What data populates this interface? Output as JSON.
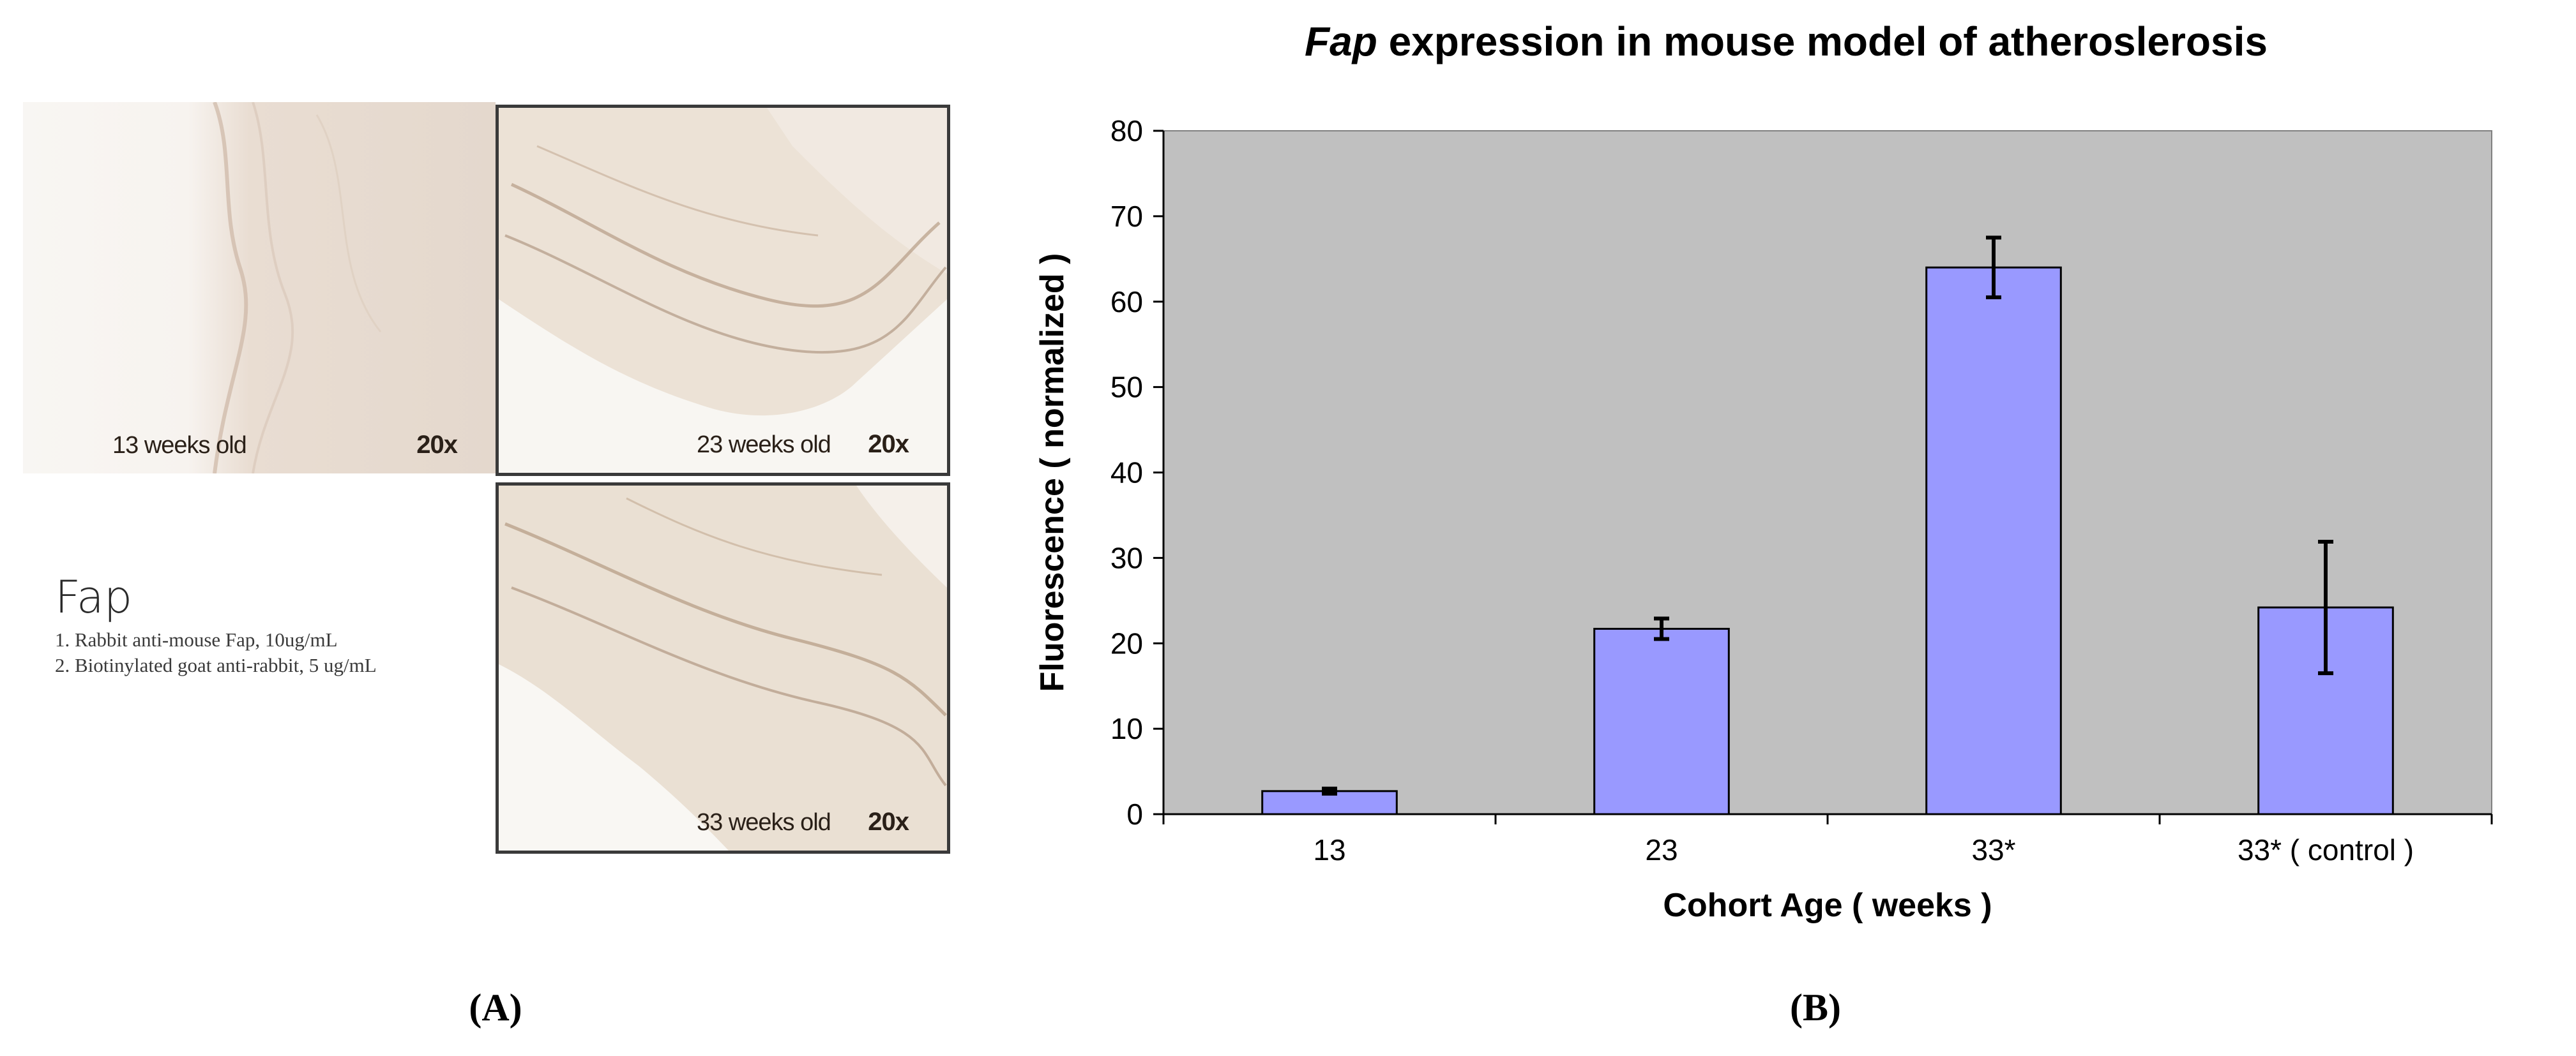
{
  "panel_a": {
    "label": "(A)",
    "micrographs": [
      {
        "age": "13 weeks old",
        "mag": "20x"
      },
      {
        "age": "23 weeks old",
        "mag": "20x"
      },
      {
        "age": "33 weeks old",
        "mag": "20x"
      }
    ],
    "legend": {
      "title": "Fap",
      "line1": "1. Rabbit anti-mouse Fap, 10ug/mL",
      "line2": "2. Biotinylated goat anti-rabbit, 5 ug/mL"
    }
  },
  "panel_b": {
    "label": "(B)"
  },
  "chart_data": {
    "type": "bar",
    "title_italic": "Fap",
    "title_rest": " expression in mouse model of atheroslerosis",
    "xlabel": "Cohort Age ( weeks )",
    "ylabel": "Fluorescence ( normalized )",
    "categories": [
      "13",
      "23",
      "33*",
      "33* ( control )"
    ],
    "values": [
      2.7,
      21.7,
      64.0,
      24.2
    ],
    "error": [
      0.3,
      1.2,
      3.5,
      7.7
    ],
    "ylim": [
      0,
      80
    ],
    "yticks": [
      "0",
      "10",
      "20",
      "30",
      "40",
      "50",
      "60",
      "70",
      "80"
    ],
    "grid": false,
    "colors": {
      "plot_bg": "#c0c0c0",
      "bar": "#9999ff",
      "bar_edge": "#000000",
      "error": "#000000"
    }
  }
}
